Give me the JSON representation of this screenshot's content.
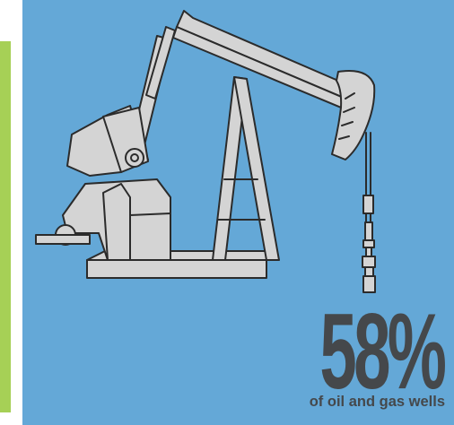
{
  "stat": {
    "value": "58%",
    "caption": "of oil and gas wells"
  },
  "colors": {
    "panel_background": "#64a8d7",
    "accent_stripe": "#a6d056",
    "text": "#45484b",
    "illustration_fill": "#d4d4d4",
    "illustration_stroke": "#2b2b2b"
  },
  "illustration": {
    "icon": "oil-pump-jack-icon"
  }
}
